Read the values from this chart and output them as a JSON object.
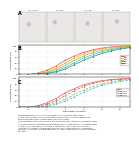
{
  "title": "Supplemental Figure 1. Floral commitment in Arabidopsis WT and mutants.",
  "caption_lines": [
    "Supplemental Figure 1. Floral commitment in Arabidopsis WT and mutants.",
    "(A) The flowerheads of Arabidopsis plants in different groups for four weeks in WT,",
    "and different genotypes showing delayed transfer of days.",
    "(B) Committed plants (left axis) flower with different duration versus linear growth in days.",
    "(C) Commitment of plants with different genotypes over linear growth in Arabidopsis days.",
    "In (B) and (C): Committed is the height normalized to A axis. Y-axis: percentage of",
    "induction. Committed in Arabidopsis plants different linear progression: Arabidopsis",
    "committed. All trend lines drawn were used for linear flowering events and committed in",
    "genotypes."
  ],
  "img_labels": [
    "col-0 WT",
    "col-0a2",
    "col-0a3",
    "col-0a4"
  ],
  "panel_a_label": "A",
  "panel_b_label": "B",
  "panel_c_label": "C",
  "plot_b": {
    "xlabel": "Days after transfer",
    "ylabel": "Committed (%)",
    "lines": [
      {
        "color": "#e8554e",
        "style": "-",
        "label": "WT"
      },
      {
        "color": "#f5a623",
        "style": "-",
        "label": "line1"
      },
      {
        "color": "#7ec850",
        "style": "-",
        "label": "line2"
      },
      {
        "color": "#4baee8",
        "style": "-",
        "label": "line3"
      },
      {
        "color": "#2e8b57",
        "style": "-",
        "label": "line4"
      }
    ],
    "x": [
      1,
      2,
      3,
      4,
      5,
      6,
      7,
      8,
      9,
      10,
      11,
      12,
      13
    ],
    "datasets": [
      [
        0,
        0,
        5,
        15,
        30,
        50,
        65,
        78,
        87,
        93,
        97,
        99,
        100
      ],
      [
        0,
        0,
        3,
        10,
        22,
        40,
        58,
        72,
        83,
        90,
        95,
        98,
        99
      ],
      [
        0,
        0,
        2,
        7,
        17,
        32,
        50,
        65,
        77,
        85,
        91,
        96,
        98
      ],
      [
        0,
        0,
        1,
        5,
        12,
        25,
        42,
        58,
        70,
        80,
        87,
        93,
        96
      ],
      [
        0,
        0,
        1,
        3,
        9,
        19,
        35,
        50,
        63,
        74,
        83,
        90,
        94
      ]
    ]
  },
  "plot_c": {
    "xlabel": "Days after transfer",
    "ylabel": "Committed (%)",
    "lines": [
      {
        "color": "#e8554e",
        "style": "-",
        "label": "WT"
      },
      {
        "color": "#e8554e",
        "style": "--",
        "label": "mutant-1"
      },
      {
        "color": "#7ec850",
        "style": "--",
        "label": "mutant-2"
      },
      {
        "color": "#4baee8",
        "style": "--",
        "label": "mutant-3"
      }
    ],
    "x": [
      1,
      2,
      3,
      4,
      5,
      6,
      7,
      8,
      9,
      10,
      11,
      12,
      13
    ],
    "datasets": [
      [
        0,
        0,
        5,
        15,
        30,
        50,
        65,
        78,
        87,
        93,
        97,
        99,
        100
      ],
      [
        0,
        0,
        3,
        10,
        22,
        40,
        58,
        72,
        83,
        90,
        95,
        98,
        99
      ],
      [
        0,
        0,
        1,
        5,
        15,
        28,
        45,
        60,
        73,
        82,
        89,
        94,
        97
      ],
      [
        0,
        0,
        1,
        3,
        10,
        20,
        36,
        52,
        66,
        76,
        84,
        90,
        95
      ]
    ]
  },
  "bg_color": "#ffffff"
}
